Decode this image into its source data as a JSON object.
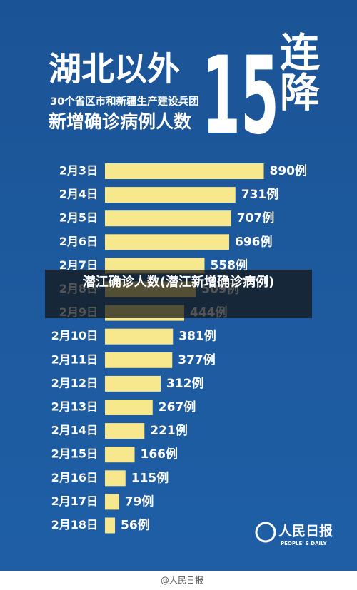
{
  "chart_data": {
    "type": "bar",
    "orientation": "horizontal",
    "title": "湖北以外",
    "subtitle": "30个省区市和新疆生产建设兵团",
    "title_line2": "新增确诊病例人数",
    "headline_number": "15",
    "headline_word": "连降",
    "categories": [
      "2月3日",
      "2月4日",
      "2月5日",
      "2月6日",
      "2月7日",
      "2月8日",
      "2月9日",
      "2月10日",
      "2月11日",
      "2月12日",
      "2月13日",
      "2月14日",
      "2月15日",
      "2月16日",
      "2月17日",
      "2月18日"
    ],
    "values": [
      890,
      731,
      707,
      696,
      558,
      509,
      444,
      381,
      377,
      312,
      267,
      221,
      166,
      115,
      79,
      56
    ],
    "value_labels": [
      "890例",
      "731例",
      "707例",
      "696例",
      "558例",
      "509例",
      "444例",
      "381例",
      "377例",
      "312例",
      "267例",
      "221例",
      "166例",
      "115例",
      "79例",
      "56例"
    ],
    "color": "#f7e88e"
  },
  "caption": "潜江确诊人数(潜江新增确诊病例)",
  "logo": {
    "name": "人民日报",
    "english": "PEOPLE' S DAILY"
  },
  "watermark": "@人民日报"
}
